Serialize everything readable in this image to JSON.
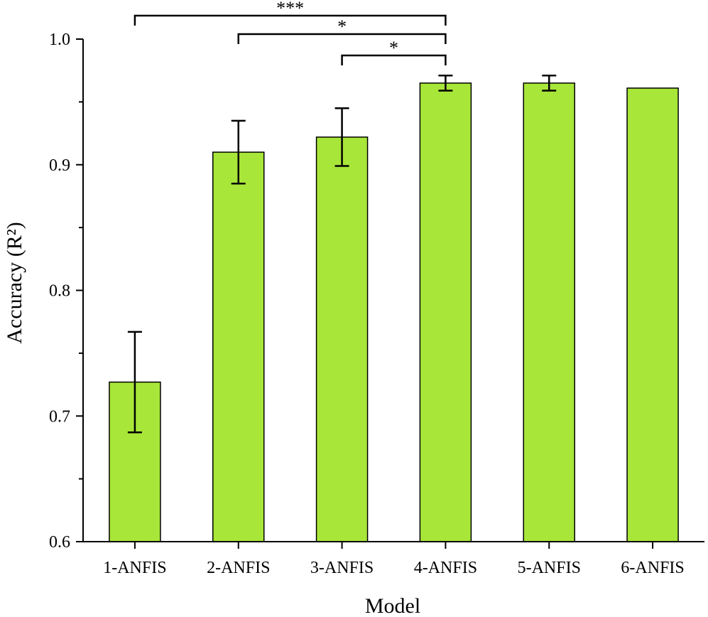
{
  "chart_data": {
    "type": "bar",
    "categories": [
      "1-ANFIS",
      "2-ANFIS",
      "3-ANFIS",
      "4-ANFIS",
      "5-ANFIS",
      "6-ANFIS"
    ],
    "values": [
      0.727,
      0.91,
      0.922,
      0.965,
      0.965,
      0.961
    ],
    "error": [
      0.04,
      0.025,
      0.023,
      0.006,
      0.006,
      null
    ],
    "xlabel": "Model",
    "ylabel": "Accuracy (R²)",
    "ylim": [
      0.6,
      1.0
    ],
    "yticks": [
      "0.6",
      "0.7",
      "0.8",
      "0.9",
      "1.0"
    ],
    "grid": false,
    "bar_color": "#a8e639",
    "significance": [
      {
        "from": "1-ANFIS",
        "to": "4-ANFIS",
        "label": "***"
      },
      {
        "from": "2-ANFIS",
        "to": "4-ANFIS",
        "label": "*"
      },
      {
        "from": "3-ANFIS",
        "to": "4-ANFIS",
        "label": "*"
      }
    ]
  }
}
